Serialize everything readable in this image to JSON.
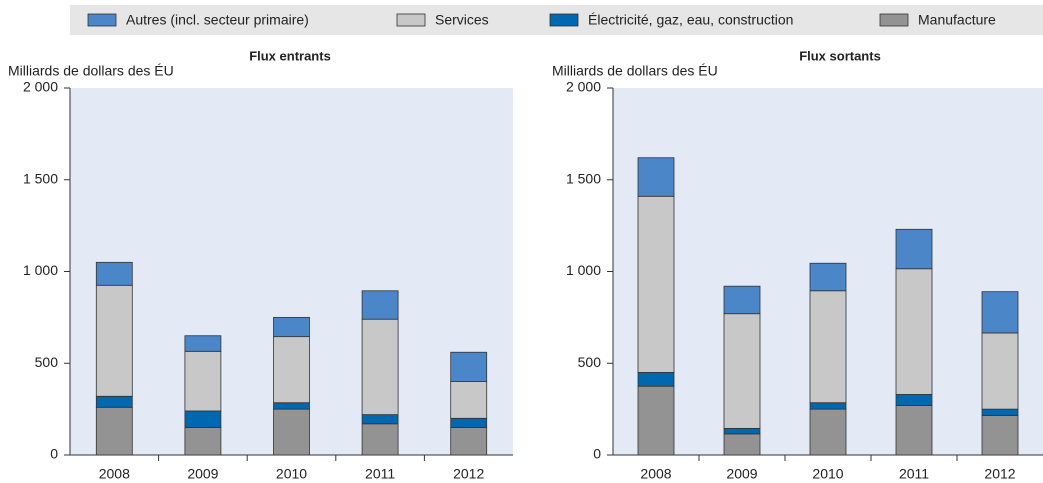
{
  "chart_data": [
    {
      "type": "bar",
      "stacked": true,
      "title": "Flux entrants",
      "y_label": "Milliards de dollars des ÉU",
      "categories": [
        "2008",
        "2009",
        "2010",
        "2011",
        "2012"
      ],
      "series": [
        {
          "name": "Manufacture",
          "color": "#939393",
          "values": [
            260,
            150,
            250,
            170,
            150
          ]
        },
        {
          "name": "Électricité, gaz, eau, construction",
          "color": "#0067b1",
          "values": [
            60,
            90,
            35,
            50,
            50
          ]
        },
        {
          "name": "Services",
          "color": "#c8c8c8",
          "values": [
            605,
            325,
            360,
            520,
            200
          ]
        },
        {
          "name": "Autres (incl. secteur primaire)",
          "color": "#4a86c8",
          "values": [
            125,
            85,
            105,
            155,
            160
          ]
        }
      ],
      "ylim": [
        0,
        2000
      ],
      "yticks": [
        0,
        500,
        {
          "value": 1000,
          "label": "1 000"
        },
        {
          "value": 1500,
          "label": "1 500"
        },
        {
          "value": 2000,
          "label": "2 000"
        }
      ]
    },
    {
      "type": "bar",
      "stacked": true,
      "title": "Flux sortants",
      "y_label": "Milliards de dollars des ÉU",
      "categories": [
        "2008",
        "2009",
        "2010",
        "2011",
        "2012"
      ],
      "series": [
        {
          "color": "#939393",
          "values": [
            375,
            115,
            250,
            270,
            215
          ]
        },
        {
          "color": "#0067b1",
          "values": [
            75,
            30,
            35,
            60,
            35
          ]
        },
        {
          "color": "#c8c8c8",
          "values": [
            960,
            625,
            610,
            685,
            415
          ]
        },
        {
          "color": "#4a86c8",
          "values": [
            210,
            150,
            150,
            215,
            225
          ]
        }
      ],
      "ylim": [
        0,
        2000
      ],
      "yticks": [
        0,
        500,
        {
          "value": 1000,
          "label": "1 000"
        },
        {
          "value": 1500,
          "label": "1 500"
        },
        {
          "value": 2000,
          "label": "2 000"
        }
      ]
    }
  ]
}
